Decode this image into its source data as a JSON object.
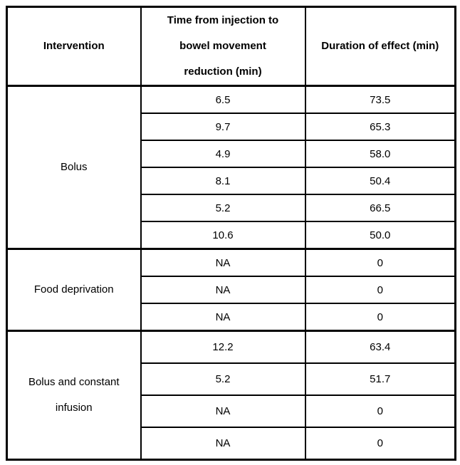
{
  "colors": {
    "border": "#000000",
    "background": "#ffffff",
    "text": "#000000"
  },
  "table": {
    "columns": [
      {
        "id": "intervention",
        "lines": [
          "Intervention"
        ]
      },
      {
        "id": "time",
        "lines": [
          "Time from injection to",
          "bowel movement",
          "reduction (min)"
        ]
      },
      {
        "id": "duration",
        "lines": [
          "Duration of effect (min)"
        ]
      }
    ],
    "groups": [
      {
        "intervention_lines": [
          "Bolus"
        ],
        "rows": [
          [
            "6.5",
            "73.5"
          ],
          [
            "9.7",
            "65.3"
          ],
          [
            "4.9",
            "58.0"
          ],
          [
            "8.1",
            "50.4"
          ],
          [
            "5.2",
            "66.5"
          ],
          [
            "10.6",
            "50.0"
          ]
        ]
      },
      {
        "intervention_lines": [
          "Food deprivation"
        ],
        "rows": [
          [
            "NA",
            "0"
          ],
          [
            "NA",
            "0"
          ],
          [
            "NA",
            "0"
          ]
        ]
      },
      {
        "intervention_lines": [
          "Bolus and constant",
          "infusion"
        ],
        "rows": [
          [
            "12.2",
            "63.4"
          ],
          [
            "5.2",
            "51.7"
          ],
          [
            "NA",
            "0"
          ],
          [
            "NA",
            "0"
          ]
        ]
      }
    ]
  }
}
